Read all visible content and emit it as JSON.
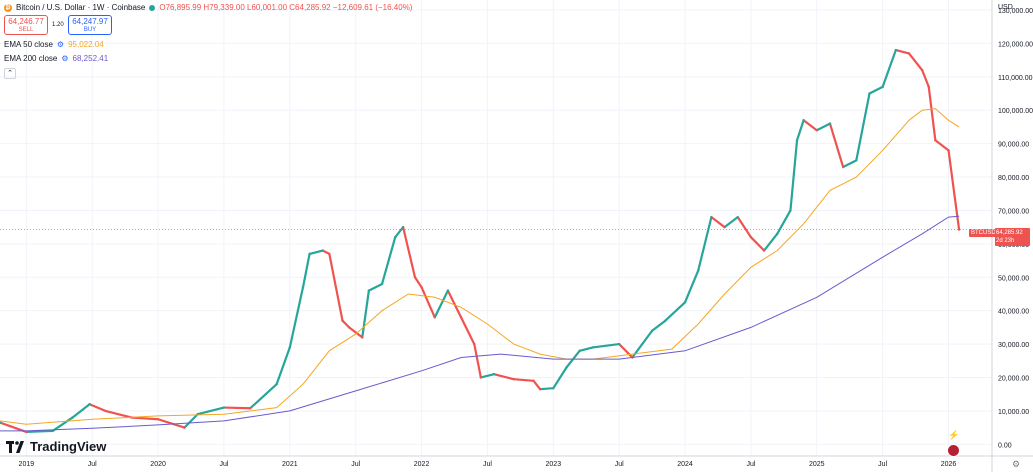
{
  "header": {
    "symbol_title": "Bitcoin / U.S. Dollar · 1W · Coinbase",
    "ohlc": "O76,895.99 H79,339.00 L60,001.00 C64,285.92 −12,609.61 (−16.40%)",
    "sell_price": "64,246.77",
    "sell_label": "SELL",
    "spread": "1.20",
    "buy_price": "64,247.97",
    "buy_label": "BUY"
  },
  "legend": [
    {
      "name": "EMA 50 close",
      "value": "95,022.04",
      "color": "#f5a623"
    },
    {
      "name": "EMA 200 close",
      "value": "68,252.41",
      "color": "#6a5acd"
    }
  ],
  "axis": {
    "currency": "USD",
    "current_price": "64,285.92",
    "current_symbol": "BTCUSD",
    "countdown": "2d 23h"
  },
  "branding": {
    "logo_text": "TradingView"
  },
  "colors": {
    "up": "#26a69a",
    "down": "#ef5350",
    "ema50": "#f5a623",
    "ema200": "#6a5acd",
    "grid": "#f0f3fa"
  },
  "chart_data": {
    "type": "line",
    "title": "Bitcoin / U.S. Dollar · 1W · Coinbase",
    "y_ticks": [
      0,
      10000,
      20000,
      30000,
      40000,
      50000,
      60000,
      70000,
      80000,
      90000,
      100000,
      110000,
      120000,
      130000
    ],
    "y_tick_labels": [
      "0.00",
      "10,000.00",
      "20,000.00",
      "30,000.00",
      "40,000.00",
      "50,000.00",
      "60,000.00",
      "70,000.00",
      "80,000.00",
      "90,000.00",
      "100,000.00",
      "110,000.00",
      "120,000.00",
      "130,000.00"
    ],
    "x_ticks": [
      2019,
      2019.5,
      2020,
      2020.5,
      2021,
      2021.5,
      2022,
      2022.5,
      2023,
      2023.5,
      2024,
      2024.5,
      2025,
      2025.5,
      2026
    ],
    "x_tick_labels": [
      "2019",
      "Jul",
      "2020",
      "Jul",
      "2021",
      "Jul",
      "2022",
      "Jul",
      "2023",
      "Jul",
      "2024",
      "Jul",
      "2025",
      "Jul",
      "2026"
    ],
    "ylim": [
      -3500,
      133000
    ],
    "xlim": [
      2018.8,
      2026.33
    ],
    "grid": true,
    "series": [
      {
        "name": "BTCUSD",
        "x": [
          2018.8,
          2019.0,
          2019.2,
          2019.35,
          2019.48,
          2019.6,
          2019.8,
          2020.0,
          2020.2,
          2020.3,
          2020.5,
          2020.7,
          2020.9,
          2021.0,
          2021.1,
          2021.15,
          2021.25,
          2021.3,
          2021.4,
          2021.45,
          2021.55,
          2021.6,
          2021.7,
          2021.8,
          2021.86,
          2021.95,
          2022.0,
          2022.1,
          2022.2,
          2022.3,
          2022.4,
          2022.45,
          2022.55,
          2022.7,
          2022.85,
          2022.9,
          2023.0,
          2023.1,
          2023.2,
          2023.3,
          2023.5,
          2023.6,
          2023.75,
          2023.85,
          2024.0,
          2024.1,
          2024.2,
          2024.3,
          2024.4,
          2024.5,
          2024.6,
          2024.7,
          2024.8,
          2024.85,
          2024.9,
          2025.0,
          2025.1,
          2025.2,
          2025.3,
          2025.4,
          2025.5,
          2025.6,
          2025.7,
          2025.8,
          2025.85,
          2025.9,
          2026.0,
          2026.08
        ],
        "y": [
          6500,
          3700,
          4000,
          8000,
          12000,
          10000,
          8000,
          7500,
          5000,
          9000,
          11000,
          10800,
          18000,
          29000,
          47000,
          57000,
          58000,
          57000,
          37000,
          35000,
          32000,
          46000,
          48000,
          62000,
          65000,
          50000,
          47000,
          38000,
          46000,
          38000,
          30000,
          20000,
          21000,
          19500,
          19000,
          16500,
          16800,
          23000,
          28000,
          29000,
          30000,
          26000,
          34000,
          37000,
          42500,
          52000,
          68000,
          65000,
          68000,
          62000,
          58000,
          63000,
          70000,
          91000,
          97000,
          94000,
          96000,
          83000,
          85000,
          105000,
          107000,
          118000,
          117000,
          112000,
          107000,
          91000,
          88000,
          64285.92
        ]
      },
      {
        "name": "EMA 50 close",
        "x": [
          2018.8,
          2019.0,
          2019.5,
          2020.0,
          2020.5,
          2020.9,
          2021.1,
          2021.3,
          2021.5,
          2021.7,
          2021.9,
          2022.1,
          2022.3,
          2022.5,
          2022.7,
          2022.9,
          2023.1,
          2023.3,
          2023.6,
          2023.9,
          2024.1,
          2024.3,
          2024.5,
          2024.7,
          2024.9,
          2025.1,
          2025.3,
          2025.5,
          2025.7,
          2025.8,
          2025.9,
          2026.0,
          2026.08
        ],
        "y": [
          7000,
          6000,
          7500,
          8500,
          9000,
          11000,
          18000,
          28000,
          33000,
          40000,
          45000,
          44000,
          41000,
          36000,
          30000,
          27000,
          25500,
          25500,
          27000,
          28500,
          36000,
          45000,
          53000,
          58000,
          66000,
          76000,
          80000,
          88000,
          97000,
          100000,
          100500,
          97000,
          95022.04
        ]
      },
      {
        "name": "EMA 200 close",
        "x": [
          2018.8,
          2019.0,
          2019.5,
          2020.0,
          2020.5,
          2021.0,
          2021.5,
          2022.0,
          2022.3,
          2022.6,
          2023.0,
          2023.5,
          2024.0,
          2024.5,
          2025.0,
          2025.5,
          2025.8,
          2026.0,
          2026.08
        ],
        "y": [
          4000,
          4000,
          4800,
          5800,
          7000,
          10000,
          16000,
          22000,
          26000,
          27000,
          25500,
          25500,
          28000,
          35000,
          44000,
          56000,
          63000,
          68000,
          68252.41
        ]
      }
    ]
  }
}
